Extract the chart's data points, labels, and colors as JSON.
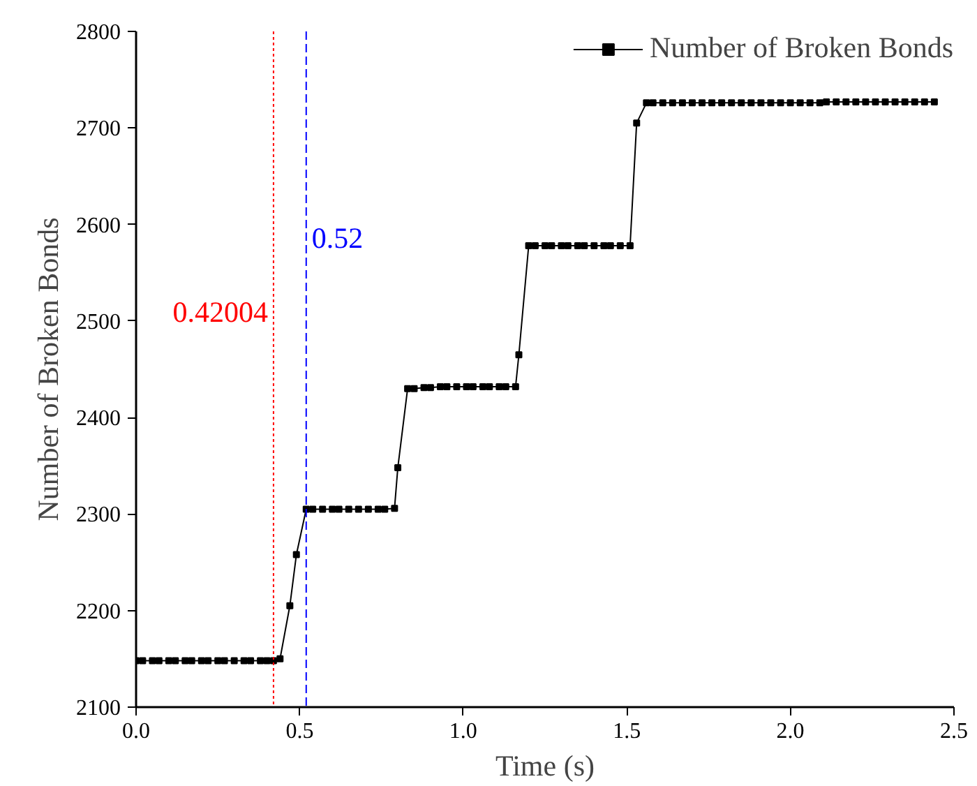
{
  "chart_data": {
    "type": "line",
    "xlabel": "Time (s)",
    "ylabel": "Number of Broken Bonds",
    "xlim": [
      0,
      2.5
    ],
    "ylim": [
      2100,
      2800
    ],
    "xticks": [
      {
        "value": 0,
        "label": "0.0"
      },
      {
        "value": 0.5,
        "label": "0.5"
      },
      {
        "value": 1,
        "label": "1.0"
      },
      {
        "value": 1.5,
        "label": "1.5"
      },
      {
        "value": 2,
        "label": "2.0"
      },
      {
        "value": 2.5,
        "label": "2.5"
      }
    ],
    "yticks": [
      2100,
      2200,
      2300,
      2400,
      2500,
      2600,
      2700,
      2800
    ],
    "grid": false,
    "legend": "top right",
    "marker": "square",
    "line_style": "solid",
    "x": [
      0.0,
      0.02,
      0.05,
      0.07,
      0.1,
      0.12,
      0.15,
      0.17,
      0.2,
      0.22,
      0.25,
      0.27,
      0.3,
      0.33,
      0.35,
      0.38,
      0.4,
      0.42,
      0.44,
      0.47,
      0.49,
      0.52,
      0.54,
      0.57,
      0.6,
      0.62,
      0.65,
      0.68,
      0.71,
      0.74,
      0.76,
      0.79,
      0.8,
      0.83,
      0.85,
      0.88,
      0.9,
      0.93,
      0.95,
      0.98,
      1.01,
      1.03,
      1.06,
      1.08,
      1.11,
      1.13,
      1.16,
      1.17,
      1.2,
      1.22,
      1.25,
      1.27,
      1.3,
      1.32,
      1.35,
      1.37,
      1.4,
      1.43,
      1.45,
      1.48,
      1.51,
      1.53,
      1.56,
      1.58,
      1.61,
      1.64,
      1.67,
      1.7,
      1.73,
      1.76,
      1.79,
      1.82,
      1.85,
      1.88,
      1.91,
      1.94,
      1.97,
      2.0,
      2.03,
      2.06,
      2.09,
      2.11,
      2.14,
      2.17,
      2.2,
      2.23,
      2.26,
      2.29,
      2.32,
      2.35,
      2.38,
      2.41,
      2.44
    ],
    "series": [
      {
        "name": "Number of Broken Bonds",
        "color": "#000000",
        "values": [
          2148,
          2148,
          2148,
          2148,
          2148,
          2148,
          2148,
          2148,
          2148,
          2148,
          2148,
          2148,
          2148,
          2148,
          2148,
          2148,
          2148,
          2148,
          2150,
          2205,
          2258,
          2305,
          2305,
          2305,
          2305,
          2305,
          2305,
          2305,
          2305,
          2305,
          2305,
          2306,
          2348,
          2430,
          2430,
          2431,
          2431,
          2432,
          2432,
          2432,
          2432,
          2432,
          2432,
          2432,
          2432,
          2432,
          2432,
          2465,
          2578,
          2578,
          2578,
          2578,
          2578,
          2578,
          2578,
          2578,
          2578,
          2578,
          2578,
          2578,
          2578,
          2705,
          2726,
          2726,
          2726,
          2726,
          2726,
          2726,
          2726,
          2726,
          2726,
          2726,
          2726,
          2726,
          2726,
          2726,
          2726,
          2726,
          2726,
          2726,
          2726,
          2727,
          2727,
          2727,
          2727,
          2727,
          2727,
          2727,
          2727,
          2727,
          2727,
          2727,
          2727
        ]
      }
    ],
    "ref_lines": [
      {
        "axis": "x",
        "value": 0.42004,
        "label": "0.42004",
        "color": "#ff0000",
        "line_style": "dotted"
      },
      {
        "axis": "x",
        "value": 0.52,
        "label": "0.52",
        "color": "#0000ff",
        "line_style": "dashed"
      }
    ]
  }
}
